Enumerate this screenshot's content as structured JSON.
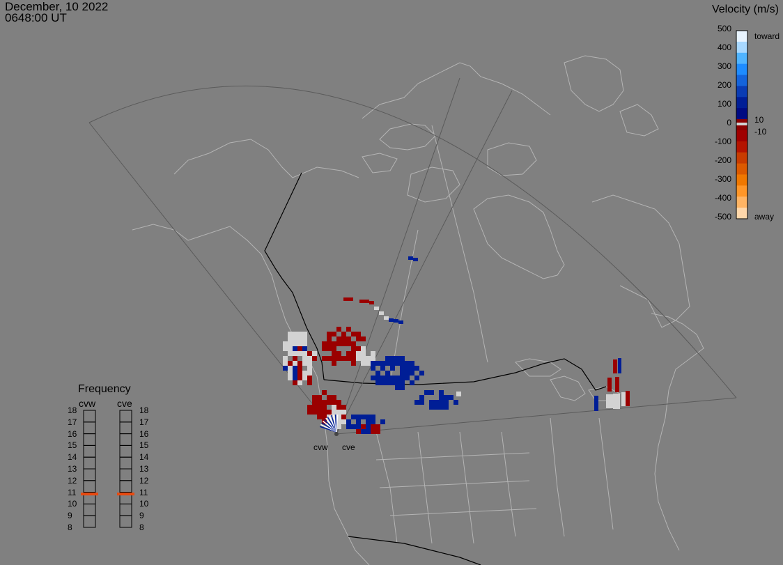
{
  "header": {
    "date": "December, 10 2022",
    "time": "0648:00 UT"
  },
  "colorbar": {
    "title": "Velocity (m/s)",
    "ticks": [
      "500",
      "400",
      "300",
      "200",
      "100",
      "0",
      "-100",
      "-200",
      "-300",
      "-400",
      "-500"
    ],
    "toward_label": "toward",
    "away_label": "away",
    "pos_threshold": "10",
    "neg_threshold": "-10",
    "colors_top_to_bottom": [
      "#e8f4ff",
      "#a8d8ff",
      "#50b4ff",
      "#1e8cff",
      "#1464dc",
      "#0a3cb4",
      "#001e96",
      "#000a82",
      "#8c0000",
      "#a00000",
      "#b41400",
      "#c83c00",
      "#dc5a00",
      "#f07800",
      "#ff9628",
      "#ffb464",
      "#ffd7aa"
    ]
  },
  "frequency": {
    "title": "Frequency",
    "radars": [
      {
        "label": "cvw",
        "value": 10.85
      },
      {
        "label": "cve",
        "value": 10.85
      }
    ],
    "scale": [
      "18",
      "17",
      "16",
      "15",
      "14",
      "13",
      "12",
      "11",
      "10",
      "9",
      "8"
    ],
    "indicator_color": "#e84a10"
  },
  "radars": [
    {
      "label": "cvw"
    },
    {
      "label": "cve"
    }
  ],
  "map_colors": {
    "background": "#808080",
    "coast": "#b4b4b4",
    "border": "#000000",
    "fov": "#5a5a5a",
    "toward": "#001e96",
    "away": "#9a0000",
    "ground_scatter": "#d2d2d2"
  }
}
